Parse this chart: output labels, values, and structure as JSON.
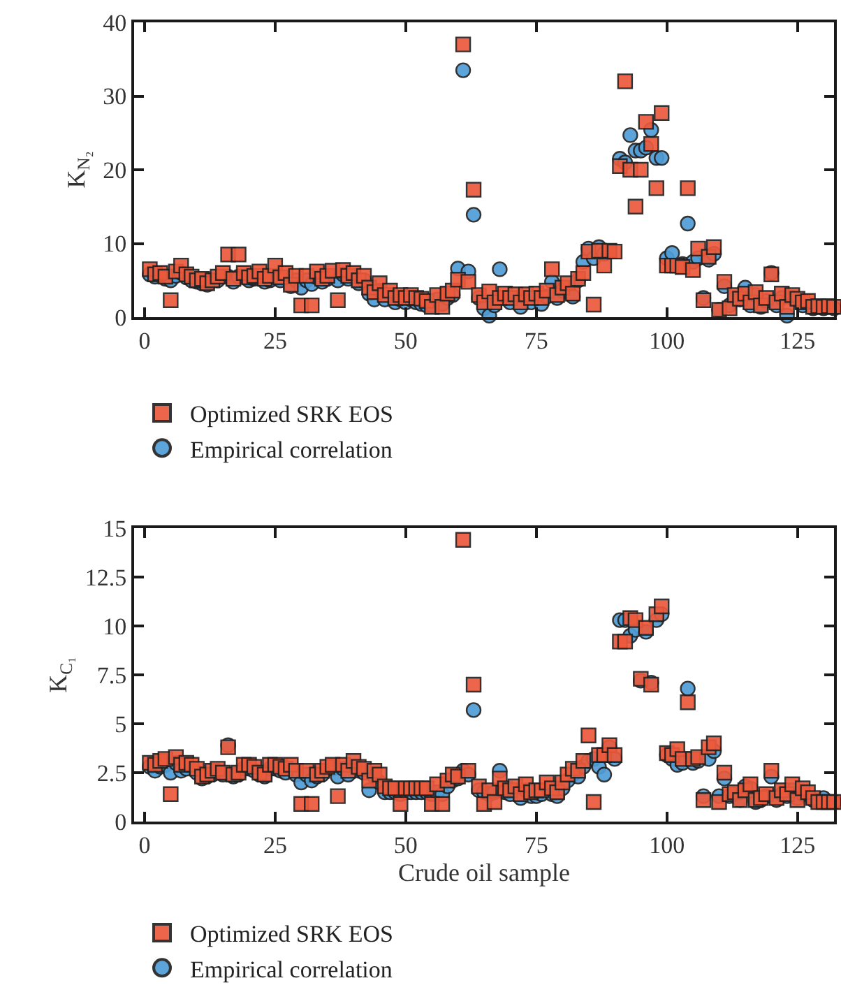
{
  "chart_data": [
    {
      "type": "scatter",
      "ylabel": "K$_{N₂}$",
      "xlim": [
        -2,
        132
      ],
      "xticks": [
        0,
        25,
        50,
        75,
        100,
        125
      ],
      "ylim": [
        0,
        40
      ],
      "yticks": [
        0,
        10,
        20,
        30,
        40
      ],
      "legend": "bottom",
      "x": [
        1,
        2,
        3,
        4,
        5,
        6,
        7,
        8,
        9,
        10,
        11,
        12,
        13,
        14,
        15,
        16,
        17,
        18,
        19,
        20,
        21,
        22,
        23,
        24,
        25,
        26,
        27,
        28,
        29,
        30,
        31,
        32,
        33,
        34,
        35,
        36,
        37,
        38,
        39,
        40,
        41,
        42,
        43,
        44,
        45,
        46,
        47,
        48,
        49,
        50,
        51,
        52,
        53,
        54,
        55,
        56,
        57,
        58,
        59,
        60,
        61,
        62,
        63,
        64,
        65,
        66,
        67,
        68,
        69,
        70,
        71,
        72,
        73,
        74,
        75,
        76,
        77,
        78,
        79,
        80,
        81,
        82,
        83,
        84,
        85,
        86,
        87,
        88,
        89,
        90,
        91,
        92,
        93,
        94,
        95,
        96,
        97,
        98,
        99,
        100,
        101,
        102,
        103,
        104,
        105,
        106,
        107,
        108,
        109,
        110,
        111,
        112,
        113,
        114,
        115,
        116,
        117,
        118,
        119,
        120,
        121,
        122,
        123,
        124,
        125,
        126,
        127,
        128,
        129,
        130,
        131,
        132
      ],
      "series": [
        {
          "name": "Empirical correlation",
          "color": "#4f9dd6",
          "marker": "circle",
          "values": [
            5.8,
            5.5,
            null,
            5.2,
            5,
            5.6,
            6,
            5.4,
            5,
            4.8,
            4.6,
            4.4,
            null,
            5,
            null,
            5.5,
            4.8,
            5.5,
            null,
            5,
            5.2,
            null,
            4.8,
            5,
            null,
            5,
            null,
            4.2,
            5,
            4,
            5,
            4.5,
            5.4,
            4.8,
            5.2,
            null,
            5,
            5.8,
            5.2,
            null,
            4.6,
            5,
            3.2,
            2.4,
            3.6,
            2.4,
            null,
            2,
            2.4,
            2,
            2.4,
            2,
            1.8,
            1.6,
            1.6,
            2.4,
            1.8,
            2.6,
            3,
            6.6,
            33.5,
            6.2,
            13.9,
            2.6,
            1.2,
            0.2,
            1.6,
            6.5,
            null,
            2,
            null,
            1.4,
            null,
            2,
            null,
            1.8,
            2.8,
            4.8,
            2.6,
            3.6,
            null,
            2.8,
            5,
            7.5,
            9.3,
            8,
            9.5,
            8.6,
            null,
            null,
            21.5,
            21,
            24.7,
            22.6,
            22.6,
            23,
            25.4,
            21.6,
            21.6,
            8,
            8.7,
            null,
            7.2,
            12.7,
            7.5,
            8,
            2.6,
            7.8,
            8.6,
            1,
            4.2,
            1.6,
            2.6,
            2.4,
            4,
            1.6,
            3,
            1.4,
            2.2,
            6,
            1.6,
            2.6,
            0.2,
            2.6,
            null,
            1.6,
            null,
            1.2,
            null,
            1.2,
            null,
            1.2
          ]
        },
        {
          "name": "Optimized SRK EOS",
          "color": "#ec5a3c",
          "marker": "square",
          "values": [
            6.5,
            5.8,
            6,
            5.5,
            2.3,
            6.2,
            7,
            5.8,
            5.5,
            5,
            5.2,
            4.6,
            5,
            5.5,
            6,
            8.5,
            5.2,
            8.5,
            6,
            5.4,
            5.6,
            6.2,
            5.2,
            5.6,
            7,
            5.4,
            6,
            4.4,
            5.6,
            1.6,
            5.6,
            1.6,
            6.2,
            5.2,
            5.6,
            6.3,
            2.3,
            6.4,
            5.6,
            6,
            5,
            5.6,
            4,
            3.4,
            4.6,
            3,
            3.6,
            2.6,
            3,
            2.6,
            3,
            2.6,
            2.5,
            2.2,
            1.4,
            3,
            1.4,
            3.2,
            3.6,
            5.1,
            37,
            4.8,
            17.3,
            3,
            2,
            3.5,
            2,
            2.6,
            3.2,
            2.6,
            3.1,
            2,
            3.1,
            2.6,
            3.2,
            2.6,
            3.6,
            6.5,
            3,
            4,
            4.6,
            3.2,
            5.2,
            6,
            8.9,
            1.7,
            9,
            7,
            9,
            8.9,
            20.5,
            32,
            20,
            15,
            20,
            26.5,
            23.5,
            17.5,
            27.7,
            7,
            7,
            7,
            6.8,
            17.5,
            6.4,
            9.3,
            2.3,
            8.2,
            9.5,
            1,
            4.8,
            1.2,
            3,
            2.5,
            3.2,
            2,
            3.4,
            1.6,
            2.6,
            5.8,
            2,
            3.2,
            1.4,
            3,
            2.5,
            2,
            2.2,
            1.4,
            1.5,
            1.4,
            1.5,
            1.4
          ]
        }
      ]
    },
    {
      "type": "scatter",
      "xlabel": "Crude oil sample",
      "ylabel": "K$_{C₁}$",
      "xlim": [
        -2,
        132
      ],
      "xticks": [
        0,
        25,
        50,
        75,
        100,
        125
      ],
      "ylim": [
        0,
        15
      ],
      "yticks": [
        0,
        2.5,
        5,
        7.5,
        10,
        12.5,
        15
      ],
      "legend": "bottom",
      "x": [
        1,
        2,
        3,
        4,
        5,
        6,
        7,
        8,
        9,
        10,
        11,
        12,
        13,
        14,
        15,
        16,
        17,
        18,
        19,
        20,
        21,
        22,
        23,
        24,
        25,
        26,
        27,
        28,
        29,
        30,
        31,
        32,
        33,
        34,
        35,
        36,
        37,
        38,
        39,
        40,
        41,
        42,
        43,
        44,
        45,
        46,
        47,
        48,
        49,
        50,
        51,
        52,
        53,
        54,
        55,
        56,
        57,
        58,
        59,
        60,
        61,
        62,
        63,
        64,
        65,
        66,
        67,
        68,
        69,
        70,
        71,
        72,
        73,
        74,
        75,
        76,
        77,
        78,
        79,
        80,
        81,
        82,
        83,
        84,
        85,
        86,
        87,
        88,
        89,
        90,
        91,
        92,
        93,
        94,
        95,
        96,
        97,
        98,
        99,
        100,
        101,
        102,
        103,
        104,
        105,
        106,
        107,
        108,
        109,
        110,
        111,
        112,
        113,
        114,
        115,
        116,
        117,
        118,
        119,
        120,
        121,
        122,
        123,
        124,
        125,
        126,
        127,
        128,
        129,
        130,
        131,
        132
      ],
      "series": [
        {
          "name": "Empirical correlation",
          "color": "#4f9dd6",
          "marker": "circle",
          "values": [
            2.8,
            2.6,
            2.8,
            2.9,
            2.5,
            3,
            2.6,
            2.7,
            null,
            2.5,
            2.2,
            2.3,
            2.4,
            null,
            2.4,
            3.9,
            2.3,
            2.4,
            2.7,
            2.7,
            2.6,
            2.4,
            2.3,
            2.7,
            2.7,
            2.6,
            2.5,
            null,
            2.4,
            2,
            2.4,
            2.1,
            2.3,
            2.4,
            null,
            2.7,
            2.3,
            2.7,
            2.4,
            null,
            2.6,
            2.5,
            1.6,
            2.3,
            2,
            1.5,
            1.5,
            1.5,
            1.4,
            1.5,
            1.5,
            1.5,
            1.5,
            1.5,
            1.4,
            1.5,
            1.4,
            1.8,
            2.1,
            2.2,
            2.6,
            2.4,
            5.7,
            1.6,
            1.5,
            1.4,
            1.5,
            2.6,
            1.5,
            1.4,
            null,
            1.2,
            1.6,
            1.3,
            1.3,
            1.4,
            null,
            1.4,
            1.3,
            1.7,
            2.1,
            2.4,
            2.3,
            2.8,
            3.1,
            3.2,
            2.8,
            2.4,
            3.8,
            3.2,
            10.3,
            10.3,
            9.5,
            9.8,
            7.2,
            9.7,
            7.1,
            10.3,
            10.6,
            3.4,
            3.2,
            2.9,
            3,
            6.8,
            3,
            3.1,
            1.3,
            3.2,
            3.6,
            1.3,
            2.2,
            1.3,
            null,
            1.1,
            1.8,
            1.7,
            1,
            1.1,
            1.3,
            2.3,
            1.1,
            1.4,
            1.3,
            1.6,
            1.2,
            1.4,
            null,
            1.1,
            null,
            1.2,
            null,
            1
          ]
        },
        {
          "name": "Optimized SRK EOS",
          "color": "#ec5a3c",
          "marker": "square",
          "values": [
            3,
            2.9,
            3.1,
            3.2,
            1.4,
            3.3,
            2.9,
            3,
            2.9,
            2.7,
            2.3,
            2.4,
            2.6,
            2.7,
            2.5,
            3.8,
            2.4,
            2.5,
            2.9,
            2.9,
            2.8,
            2.5,
            2.4,
            2.9,
            2.9,
            2.8,
            2.7,
            2.9,
            2.6,
            0.9,
            2.6,
            0.9,
            2.4,
            2.6,
            2.8,
            2.9,
            1.3,
            2.9,
            2.6,
            3.1,
            2.8,
            2.7,
            2.1,
            2.6,
            2.4,
            1.8,
            1.7,
            1.7,
            0.9,
            1.7,
            1.7,
            1.7,
            1.7,
            1.7,
            0.9,
            1.9,
            0.9,
            2.1,
            2.4,
            2.3,
            14.4,
            2.6,
            7,
            1.8,
            0.9,
            1.6,
            1,
            2.2,
            1.7,
            1.6,
            1.8,
            1.4,
            1.9,
            1.5,
            1.6,
            1.6,
            2,
            1.7,
            1.5,
            2,
            2.4,
            2.7,
            2.6,
            3.1,
            4.4,
            1,
            3.4,
            3.4,
            3.9,
            3.4,
            9.2,
            9.2,
            10.4,
            10.3,
            7.3,
            9.9,
            7,
            10.6,
            11,
            3.5,
            3.4,
            3.7,
            3.2,
            6.1,
            3.2,
            3.3,
            1.1,
            3.8,
            4,
            1,
            2.5,
            1.4,
            1.5,
            1.1,
            1.6,
            1.9,
            1.1,
            1.2,
            1.4,
            2.6,
            1.2,
            1.6,
            1.4,
            1.9,
            1.1,
            1.7,
            1.5,
            1.2,
            1,
            1,
            1,
            1
          ]
        }
      ]
    }
  ]
}
